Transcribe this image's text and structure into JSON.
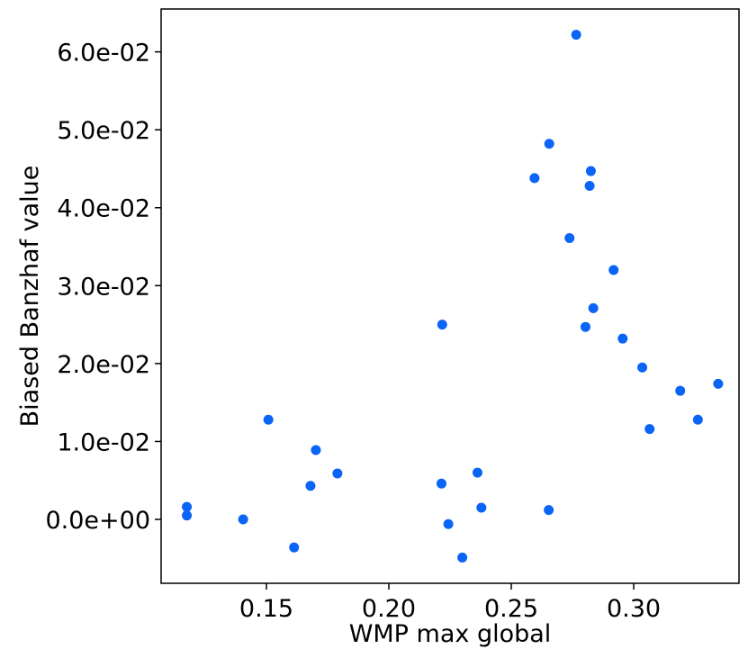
{
  "chart_data": {
    "type": "scatter",
    "xlabel": "WMP max global",
    "ylabel": "Biased Banzhaf value",
    "xlim": [
      0.107,
      0.343
    ],
    "ylim": [
      -0.0082,
      0.0655
    ],
    "x_ticks": [
      0.15,
      0.2,
      0.25,
      0.3
    ],
    "x_tick_labels": [
      "0.15",
      "0.20",
      "0.25",
      "0.30"
    ],
    "y_ticks": [
      0.0,
      0.01,
      0.02,
      0.03,
      0.04,
      0.05,
      0.06
    ],
    "y_tick_labels": [
      "0.0e+00",
      "1.0e-02",
      "2.0e-02",
      "3.0e-02",
      "4.0e-02",
      "5.0e-02",
      "6.0e-02"
    ],
    "grid": false,
    "marker_color": "#0a64f5",
    "points": [
      {
        "x": 0.1175,
        "y": 0.0016
      },
      {
        "x": 0.1175,
        "y": 0.0005
      },
      {
        "x": 0.1405,
        "y": 0.0
      },
      {
        "x": 0.1508,
        "y": 0.0128
      },
      {
        "x": 0.1613,
        "y": -0.0036
      },
      {
        "x": 0.168,
        "y": 0.0043
      },
      {
        "x": 0.1702,
        "y": 0.0089
      },
      {
        "x": 0.179,
        "y": 0.0059
      },
      {
        "x": 0.2215,
        "y": 0.0046
      },
      {
        "x": 0.2218,
        "y": 0.025
      },
      {
        "x": 0.2243,
        "y": -0.0006
      },
      {
        "x": 0.23,
        "y": -0.0049
      },
      {
        "x": 0.2362,
        "y": 0.006
      },
      {
        "x": 0.2378,
        "y": 0.0015
      },
      {
        "x": 0.2595,
        "y": 0.0438
      },
      {
        "x": 0.2653,
        "y": 0.0012
      },
      {
        "x": 0.2655,
        "y": 0.0482
      },
      {
        "x": 0.2738,
        "y": 0.0361
      },
      {
        "x": 0.2765,
        "y": 0.0622
      },
      {
        "x": 0.2803,
        "y": 0.0247
      },
      {
        "x": 0.282,
        "y": 0.0428
      },
      {
        "x": 0.2825,
        "y": 0.0447
      },
      {
        "x": 0.2835,
        "y": 0.0271
      },
      {
        "x": 0.2918,
        "y": 0.032
      },
      {
        "x": 0.2955,
        "y": 0.0232
      },
      {
        "x": 0.3035,
        "y": 0.0195
      },
      {
        "x": 0.3065,
        "y": 0.0116
      },
      {
        "x": 0.319,
        "y": 0.0165
      },
      {
        "x": 0.3262,
        "y": 0.0128
      },
      {
        "x": 0.3345,
        "y": 0.0174
      }
    ]
  }
}
